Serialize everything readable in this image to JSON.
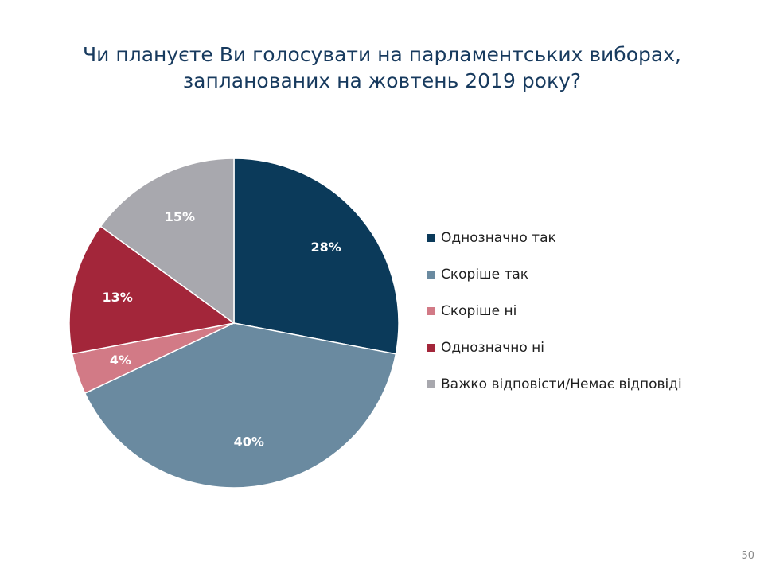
{
  "chart_data": {
    "type": "pie",
    "title": "Чи плануєте Ви голосувати на парламентських виборах, запланованих на жовтень 2019 року?",
    "title_lines": [
      "Чи плануєте Ви голосувати на парламентських виборах,",
      "запланованих на жовтень 2019 року?"
    ],
    "categories": [
      "Однозначно так",
      "Скоріше так",
      "Скоріше ні",
      "Однозначно ні",
      "Важко відповісти/Немає відповіді"
    ],
    "values": [
      28,
      40,
      4,
      13,
      15
    ],
    "labels": [
      "28%",
      "40%",
      "4%",
      "13%",
      "15%"
    ],
    "colors": [
      "#0b3a5a",
      "#6a8aa0",
      "#d27a86",
      "#a3263a",
      "#a8a8ae"
    ],
    "legend_position": "right",
    "start": "12 o'clock",
    "direction": "clockwise"
  },
  "page_number": "50"
}
